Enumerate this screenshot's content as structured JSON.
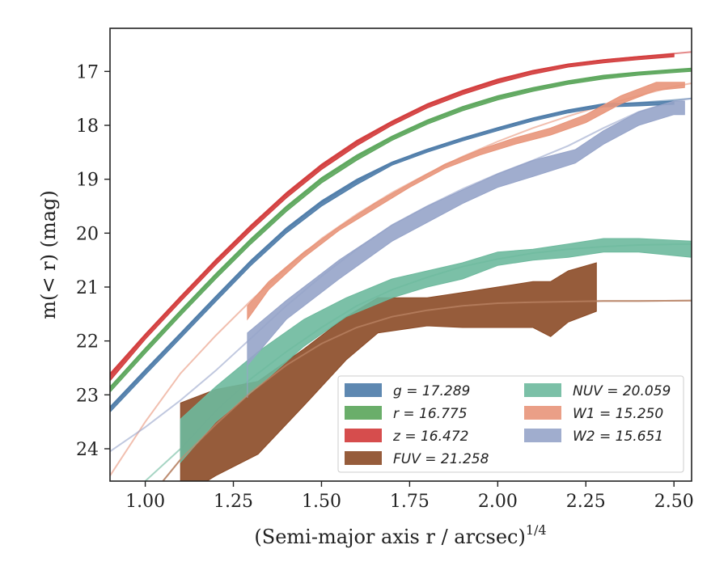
{
  "chart_data": {
    "type": "line",
    "title": "",
    "xlabel": "(Semi-major axis r / arcsec)",
    "xlabel_exponent": "1/4",
    "ylabel": "m(< r) (mag)",
    "xlim": [
      0.9,
      2.55
    ],
    "ylim": [
      24.6,
      16.2
    ],
    "y_inverted": true,
    "x_ticks": [
      1.0,
      1.25,
      1.5,
      1.75,
      2.0,
      2.25,
      2.5
    ],
    "x_tick_labels": [
      "1.00",
      "1.25",
      "1.50",
      "1.75",
      "2.00",
      "2.25",
      "2.50"
    ],
    "y_ticks": [
      17,
      18,
      19,
      20,
      21,
      22,
      23,
      24
    ],
    "y_tick_labels": [
      "17",
      "18",
      "19",
      "20",
      "21",
      "22",
      "23",
      "24"
    ],
    "grid": false,
    "legend_position": "lower-right",
    "legend_columns": 2,
    "series": [
      {
        "name": "g = 17.289",
        "color": "#4c7ba8",
        "band_x": [
          0.9,
          1.0,
          1.1,
          1.2,
          1.3,
          1.4,
          1.5,
          1.6,
          1.7,
          1.8,
          1.9,
          2.0,
          2.1,
          2.2,
          2.3,
          2.4,
          2.5
        ],
        "band_lo": [
          23.22,
          22.53,
          21.85,
          21.17,
          20.5,
          19.9,
          19.4,
          19.0,
          18.68,
          18.44,
          18.23,
          18.04,
          17.86,
          17.71,
          17.6,
          17.58,
          17.55
        ],
        "band_hi": [
          23.32,
          22.63,
          21.95,
          21.27,
          20.6,
          20.0,
          19.5,
          19.1,
          18.74,
          18.5,
          18.29,
          18.1,
          17.92,
          17.77,
          17.66,
          17.64,
          17.61
        ],
        "model_x": [
          0.9,
          1.0,
          1.1,
          1.2,
          1.3,
          1.4,
          1.5,
          1.6,
          1.7,
          1.8,
          1.9,
          2.0,
          2.1,
          2.2,
          2.3,
          2.4,
          2.5,
          2.55
        ],
        "model_y": [
          23.25,
          22.56,
          21.88,
          21.2,
          20.53,
          19.93,
          19.43,
          19.03,
          18.7,
          18.46,
          18.25,
          18.06,
          17.88,
          17.73,
          17.62,
          17.58,
          17.53,
          17.5
        ]
      },
      {
        "name": "r = 16.775",
        "color": "#5aa55a",
        "band_x": [
          0.9,
          1.0,
          1.1,
          1.2,
          1.3,
          1.4,
          1.5,
          1.6,
          1.7,
          1.8,
          1.9,
          2.0,
          2.1,
          2.2,
          2.3,
          2.4,
          2.5,
          2.55
        ],
        "band_lo": [
          22.85,
          22.13,
          21.43,
          20.75,
          20.1,
          19.5,
          18.97,
          18.55,
          18.2,
          17.9,
          17.65,
          17.45,
          17.3,
          17.17,
          17.07,
          17.01,
          16.96,
          16.94
        ],
        "band_hi": [
          22.95,
          22.23,
          21.53,
          20.85,
          20.2,
          19.6,
          19.07,
          18.65,
          18.28,
          17.98,
          17.73,
          17.53,
          17.37,
          17.24,
          17.14,
          17.07,
          17.02,
          17.0
        ],
        "model_x": [
          0.9,
          1.0,
          1.1,
          1.2,
          1.3,
          1.4,
          1.5,
          1.6,
          1.7,
          1.8,
          1.9,
          2.0,
          2.1,
          2.2,
          2.3,
          2.4,
          2.5,
          2.55
        ],
        "model_y": [
          22.88,
          22.16,
          21.46,
          20.78,
          20.13,
          19.53,
          19.0,
          18.58,
          18.23,
          17.93,
          17.68,
          17.48,
          17.33,
          17.2,
          17.1,
          17.03,
          16.98,
          16.96
        ]
      },
      {
        "name": "z = 16.472",
        "color": "#d23a3a",
        "band_x": [
          0.9,
          1.0,
          1.1,
          1.2,
          1.3,
          1.4,
          1.5,
          1.6,
          1.7,
          1.8,
          1.9,
          2.0,
          2.1,
          2.2,
          2.3,
          2.4,
          2.5
        ],
        "band_lo": [
          22.6,
          21.87,
          21.17,
          20.49,
          19.85,
          19.25,
          18.72,
          18.28,
          17.92,
          17.6,
          17.35,
          17.14,
          16.98,
          16.86,
          16.78,
          16.72,
          16.67
        ],
        "band_hi": [
          22.74,
          21.97,
          21.27,
          20.59,
          19.95,
          19.35,
          18.82,
          18.38,
          18.0,
          17.68,
          17.43,
          17.22,
          17.05,
          16.92,
          16.84,
          16.78,
          16.73
        ],
        "model_x": [
          0.9,
          1.0,
          1.1,
          1.2,
          1.3,
          1.4,
          1.5,
          1.6,
          1.7,
          1.8,
          1.9,
          2.0,
          2.1,
          2.2,
          2.3,
          2.4,
          2.5,
          2.55
        ],
        "model_y": [
          22.64,
          21.9,
          21.2,
          20.52,
          19.88,
          19.28,
          18.75,
          18.31,
          17.94,
          17.62,
          17.37,
          17.16,
          16.99,
          16.87,
          16.79,
          16.73,
          16.67,
          16.64
        ]
      },
      {
        "name": "FUV = 21.258",
        "color": "#8b4a26",
        "band_x": [
          1.1,
          1.2,
          1.32,
          1.45,
          1.57,
          1.66,
          1.8,
          1.9,
          2.0,
          2.1,
          2.15,
          2.2,
          2.28
        ],
        "band_lo": [
          24.9,
          24.5,
          24.1,
          23.2,
          22.35,
          21.85,
          21.72,
          21.75,
          21.75,
          21.75,
          21.92,
          21.65,
          21.45
        ],
        "band_hi": [
          23.15,
          22.9,
          22.75,
          22.15,
          21.55,
          21.2,
          21.2,
          21.1,
          21.0,
          20.9,
          20.9,
          20.7,
          20.55
        ],
        "model_x": [
          1.05,
          1.1,
          1.2,
          1.3,
          1.4,
          1.5,
          1.6,
          1.7,
          1.8,
          1.9,
          2.0,
          2.1,
          2.2,
          2.3,
          2.4,
          2.55
        ],
        "model_y": [
          24.6,
          24.2,
          23.55,
          22.95,
          22.45,
          22.05,
          21.75,
          21.55,
          21.43,
          21.35,
          21.3,
          21.28,
          21.27,
          21.26,
          21.26,
          21.25
        ]
      },
      {
        "name": "NUV = 20.059",
        "color": "#6db99d",
        "band_x": [
          1.1,
          1.2,
          1.32,
          1.45,
          1.57,
          1.7,
          1.8,
          1.9,
          2.0,
          2.1,
          2.2,
          2.3,
          2.4,
          2.55
        ],
        "band_lo": [
          24.25,
          23.5,
          22.85,
          22.1,
          21.55,
          21.2,
          21.0,
          20.85,
          20.6,
          20.5,
          20.45,
          20.35,
          20.35,
          20.45
        ],
        "band_hi": [
          23.45,
          22.85,
          22.2,
          21.6,
          21.2,
          20.85,
          20.7,
          20.55,
          20.35,
          20.3,
          20.2,
          20.1,
          20.1,
          20.15
        ],
        "model_x": [
          1.0,
          1.05,
          1.1,
          1.2,
          1.3,
          1.4,
          1.5,
          1.6,
          1.7,
          1.8,
          1.9,
          2.0,
          2.1,
          2.2,
          2.3,
          2.4,
          2.55
        ],
        "model_y": [
          24.6,
          24.3,
          24.0,
          23.3,
          22.7,
          22.2,
          21.75,
          21.35,
          21.05,
          20.82,
          20.62,
          20.48,
          20.37,
          20.3,
          20.25,
          20.22,
          20.2
        ]
      },
      {
        "name": "W1 = 15.250",
        "color": "#e8957a",
        "band_x": [
          1.29,
          1.35,
          1.45,
          1.55,
          1.65,
          1.75,
          1.85,
          1.95,
          2.05,
          2.15,
          2.25,
          2.35,
          2.45,
          2.53
        ],
        "band_lo": [
          21.6,
          21.05,
          20.45,
          19.95,
          19.55,
          19.15,
          18.8,
          18.55,
          18.35,
          18.18,
          17.95,
          17.6,
          17.35,
          17.3
        ],
        "band_hi": [
          21.35,
          20.9,
          20.35,
          19.88,
          19.45,
          19.08,
          18.72,
          18.45,
          18.23,
          18.05,
          17.8,
          17.45,
          17.2,
          17.2
        ],
        "model_x": [
          0.9,
          1.0,
          1.1,
          1.2,
          1.3,
          1.4,
          1.5,
          1.6,
          1.7,
          1.8,
          1.9,
          2.0,
          2.1,
          2.2,
          2.3,
          2.4,
          2.5,
          2.55
        ],
        "model_y": [
          24.5,
          23.5,
          22.6,
          21.9,
          21.25,
          20.65,
          20.1,
          19.65,
          19.25,
          18.9,
          18.58,
          18.3,
          18.05,
          17.83,
          17.63,
          17.45,
          17.28,
          17.22
        ]
      },
      {
        "name": "W2 = 15.651",
        "color": "#96a4c9",
        "band_x": [
          1.29,
          1.29,
          1.4,
          1.55,
          1.7,
          1.8,
          1.9,
          2.0,
          2.1,
          2.22,
          2.3,
          2.4,
          2.5,
          2.53
        ],
        "band_lo": [
          23.05,
          22.45,
          21.6,
          20.85,
          20.15,
          19.8,
          19.45,
          19.15,
          18.95,
          18.7,
          18.35,
          18.0,
          17.8,
          17.8
        ],
        "band_hi": [
          21.85,
          21.85,
          21.25,
          20.5,
          19.85,
          19.5,
          19.2,
          18.9,
          18.65,
          18.45,
          18.1,
          17.75,
          17.55,
          17.55
        ],
        "model_x": [
          0.9,
          1.0,
          1.1,
          1.2,
          1.3,
          1.4,
          1.5,
          1.6,
          1.7,
          1.8,
          1.9,
          2.0,
          2.1,
          2.2,
          2.3,
          2.4,
          2.5,
          2.55
        ],
        "model_y": [
          24.05,
          23.6,
          23.1,
          22.55,
          21.95,
          21.35,
          20.8,
          20.3,
          19.85,
          19.5,
          19.18,
          18.9,
          18.65,
          18.38,
          18.05,
          17.75,
          17.55,
          17.5
        ]
      }
    ],
    "legend": [
      {
        "text": "g = 17.289",
        "color": "#4c7ba8"
      },
      {
        "text": "NUV = 20.059",
        "color": "#6db99d"
      },
      {
        "text": "r = 16.775",
        "color": "#5aa55a"
      },
      {
        "text": "W1 = 15.250",
        "color": "#e8957a"
      },
      {
        "text": "z = 16.472",
        "color": "#d23a3a"
      },
      {
        "text": "W2 = 15.651",
        "color": "#96a4c9"
      },
      {
        "text": "FUV = 21.258",
        "color": "#8b4a26"
      }
    ]
  }
}
